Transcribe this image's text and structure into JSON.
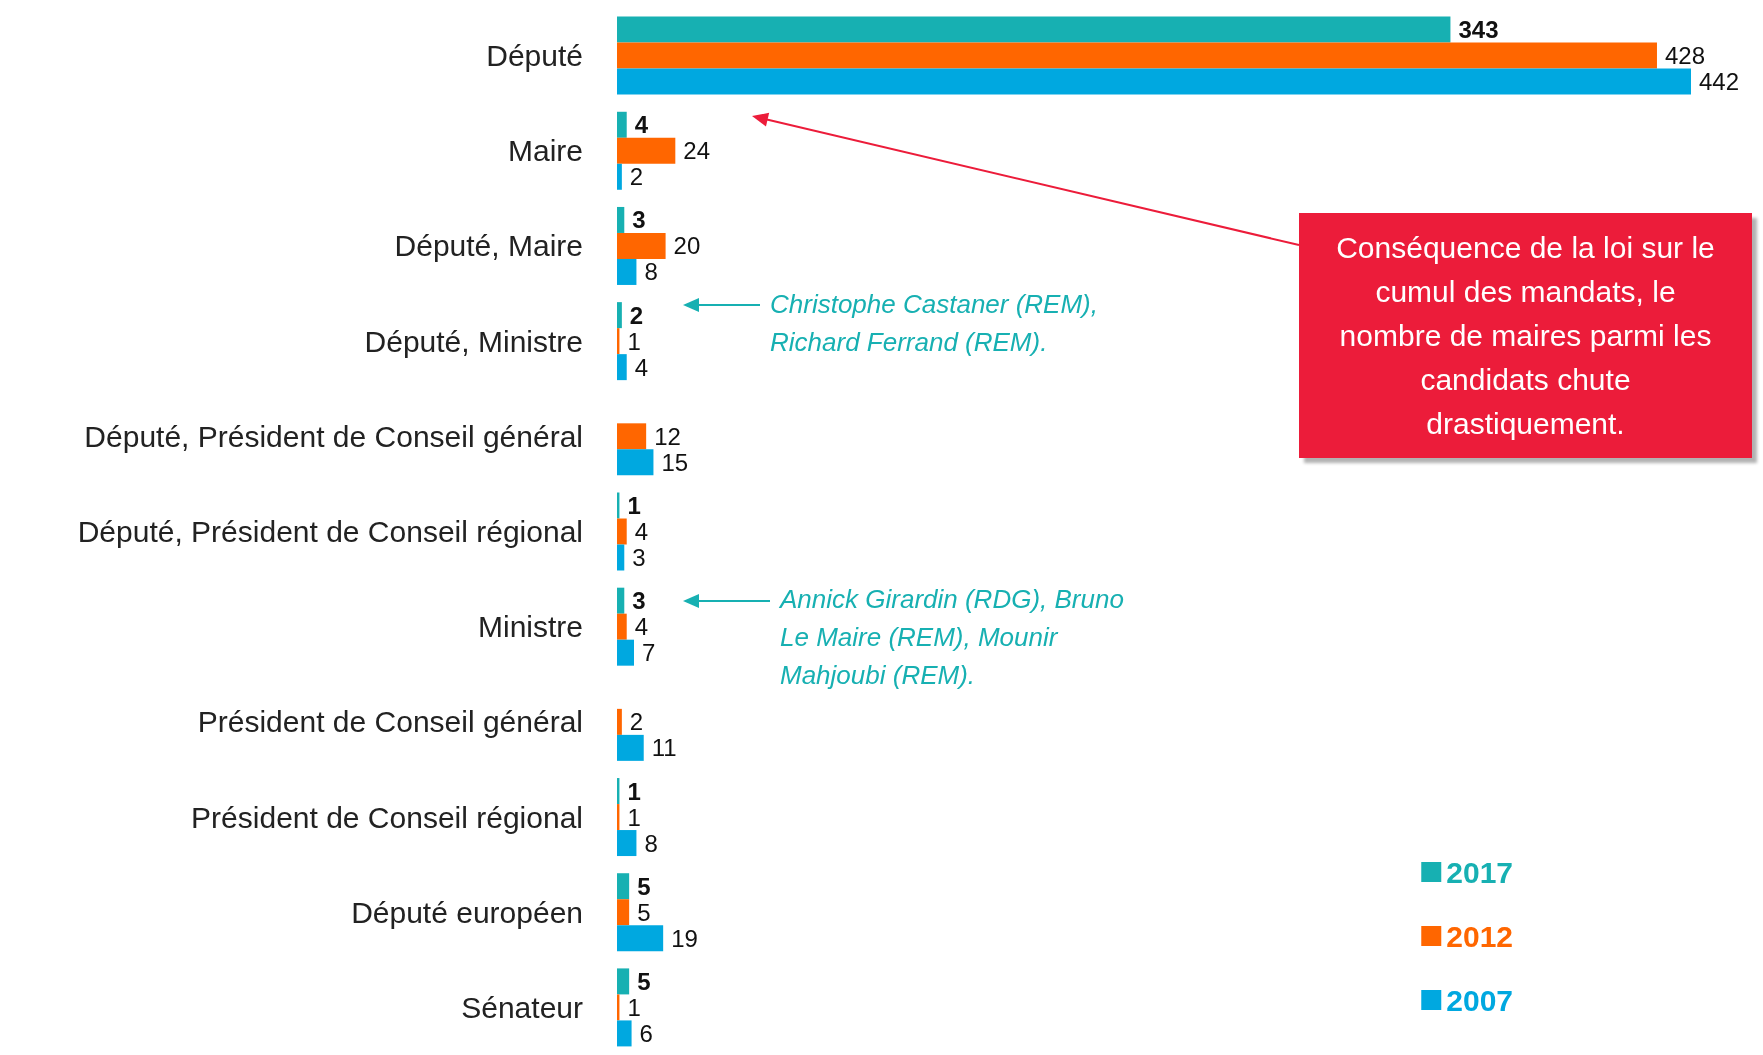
{
  "chart_data": {
    "type": "bar",
    "orientation": "horizontal",
    "categories": [
      "Député",
      "Maire",
      "Député, Maire",
      "Député, Ministre",
      "Député, Président de Conseil général",
      "Député, Président de Conseil régional",
      "Ministre",
      "Président de Conseil général",
      "Président de Conseil régional",
      "Député européen",
      "Sénateur"
    ],
    "series": [
      {
        "name": "2017",
        "color": "#17b0b2",
        "values": [
          343,
          4,
          3,
          2,
          null,
          1,
          3,
          null,
          1,
          5,
          5
        ]
      },
      {
        "name": "2012",
        "color": "#ff6600",
        "values": [
          428,
          24,
          20,
          1,
          12,
          4,
          4,
          2,
          1,
          5,
          1
        ]
      },
      {
        "name": "2007",
        "color": "#00a8e0",
        "values": [
          442,
          2,
          8,
          4,
          15,
          3,
          7,
          11,
          8,
          19,
          6
        ]
      }
    ],
    "data_labels": true,
    "legend": "bottom right",
    "grid": false,
    "annotations": [
      "Conséquence de la loi sur le cumul des mandats, le nombre de maires parmi les candidats chute drastiquement.",
      "Christophe Castaner (REM), Richard Ferrand (REM).",
      "Annick Girardin (RDG), Bruno Le Maire (REM), Mounir Mahjoubi (REM)."
    ]
  }
}
